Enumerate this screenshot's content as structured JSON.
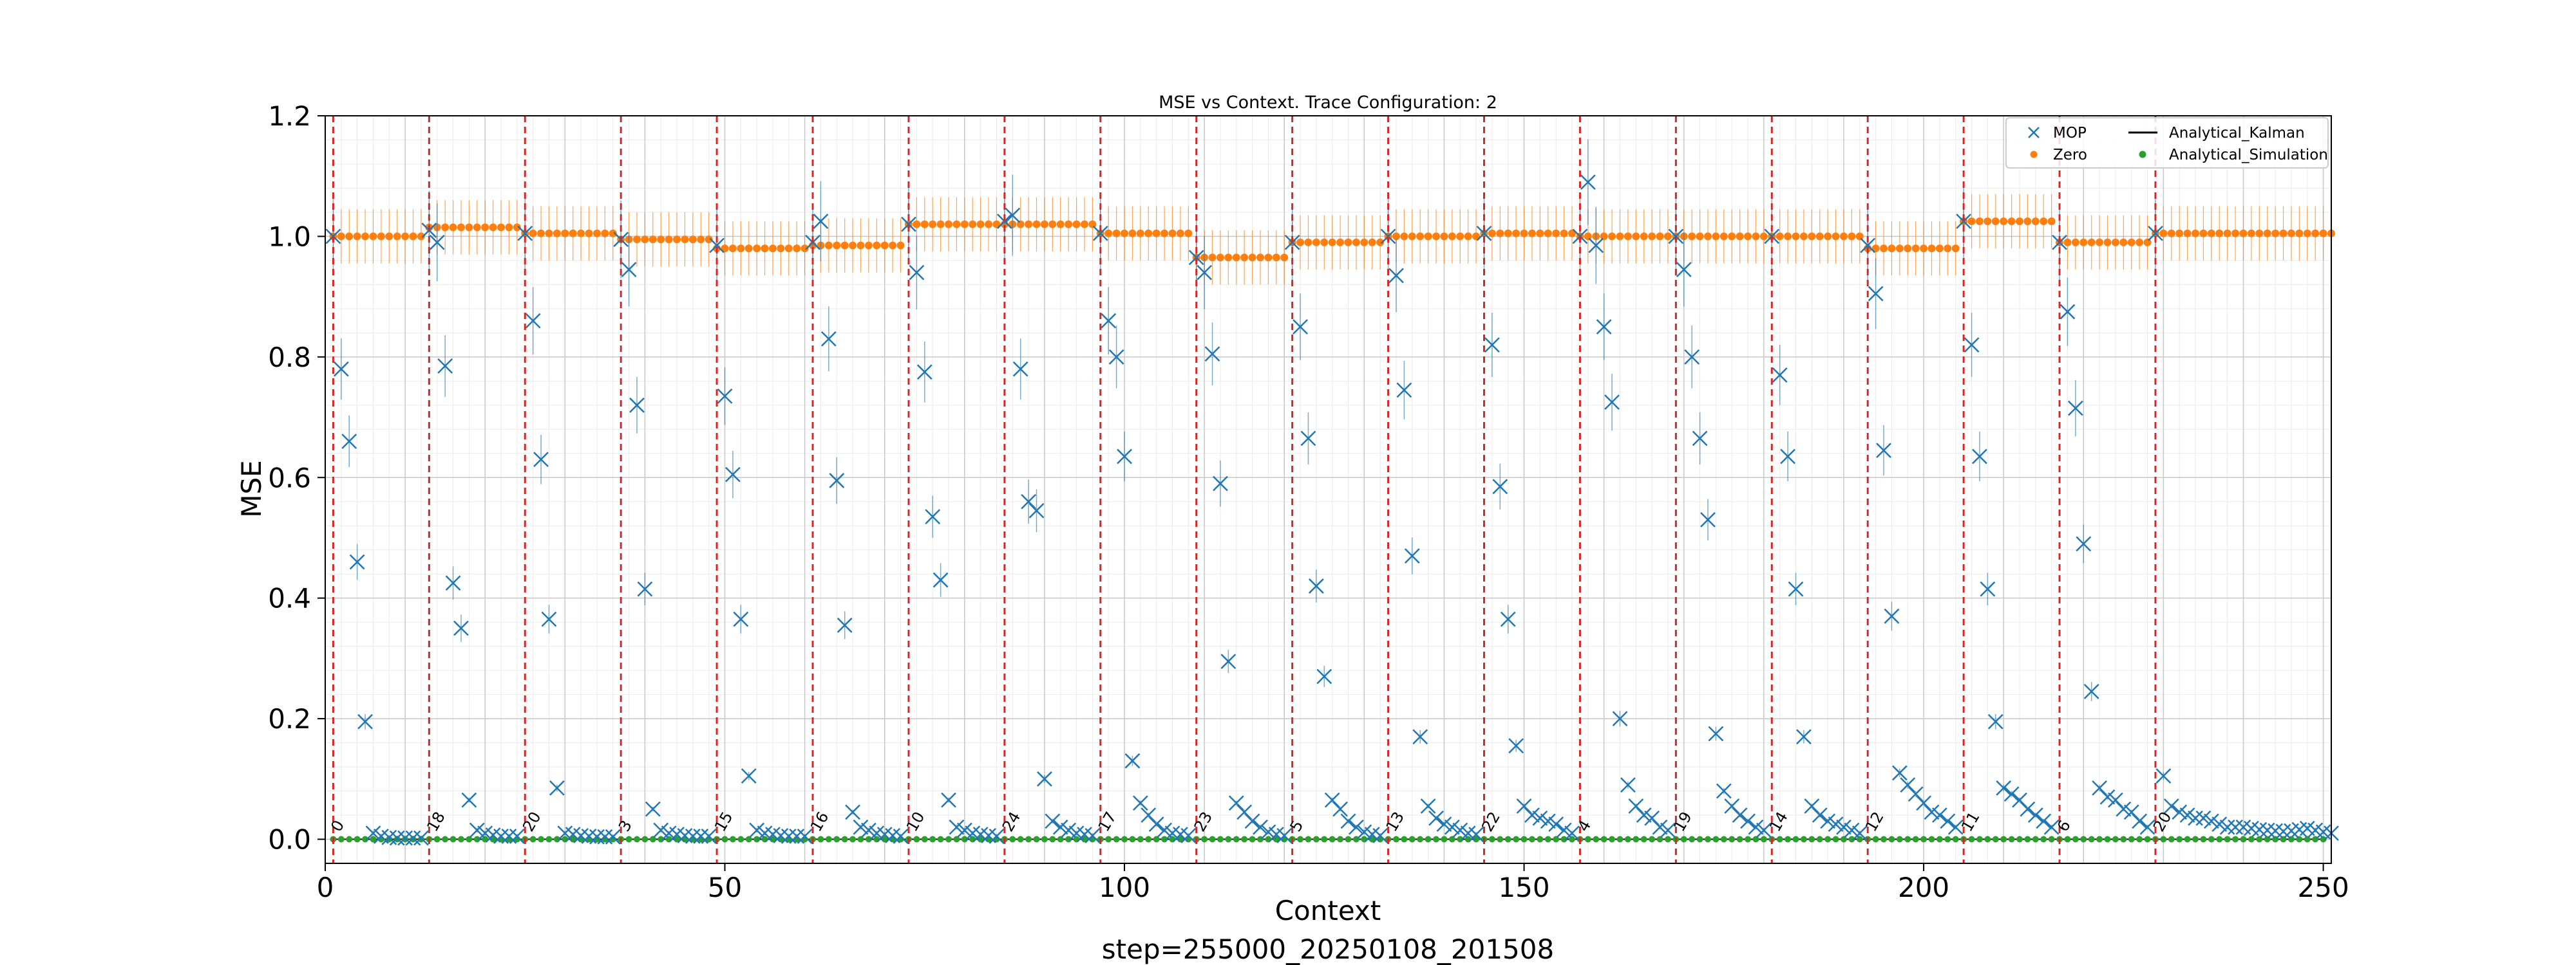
{
  "chart_data": {
    "type": "scatter",
    "title": "MSE vs Context. Trace Configuration: 2",
    "xlabel": "Context",
    "ylabel": "MSE",
    "footer": "step=255000_20250108_201508",
    "xlim": [
      0,
      251
    ],
    "ylim": [
      -0.04,
      1.2
    ],
    "x_ticks": [
      0,
      50,
      100,
      150,
      200,
      250
    ],
    "y_ticks": [
      0.0,
      0.2,
      0.4,
      0.6,
      0.8,
      1.0,
      1.2
    ],
    "grid": true,
    "legend_position": "top-right",
    "legend": [
      "MOP",
      "Zero",
      "Analytical_Kalman",
      "Analytical_Simulation"
    ],
    "colors": {
      "MOP": "#1f77b4",
      "Zero": "#ff7f0e",
      "Analytical_Kalman": "#000000",
      "Analytical_Simulation": "#2ca02c",
      "boundary": "#d62728"
    },
    "segment_starts": [
      1,
      13,
      25,
      37,
      49,
      61,
      73,
      85,
      97,
      109,
      121,
      133,
      145,
      157,
      169,
      181,
      193,
      205,
      217,
      229
    ],
    "segment_labels": [
      "0",
      "18",
      "20",
      "3",
      "15",
      "16",
      "10",
      "24",
      "17",
      "23",
      "5",
      "13",
      "22",
      "4",
      "19",
      "14",
      "12",
      "11",
      "6",
      "20"
    ],
    "zero_levels": [
      1.0,
      1.015,
      1.005,
      0.995,
      0.98,
      0.985,
      1.02,
      1.02,
      1.005,
      0.965,
      0.99,
      1.0,
      1.005,
      1.0,
      1.0,
      1.0,
      0.98,
      1.025,
      0.99,
      1.005
    ],
    "zero_errors": [
      0.045,
      0.045,
      0.045,
      0.045,
      0.045,
      0.045,
      0.045,
      0.045,
      0.045,
      0.045,
      0.045,
      0.045,
      0.045,
      0.045,
      0.045,
      0.045,
      0.045,
      0.045,
      0.045,
      0.045
    ],
    "mop_series": [
      [
        1.0,
        0.78,
        0.66,
        0.46,
        0.195,
        0.01,
        0.005,
        0.003,
        0.002,
        0.002,
        0.002,
        0.002
      ],
      [
        1.01,
        0.99,
        0.785,
        0.425,
        0.35,
        0.065,
        0.015,
        0.01,
        0.007,
        0.005,
        0.005,
        0.005
      ],
      [
        1.005,
        0.86,
        0.63,
        0.365,
        0.085,
        0.01,
        0.008,
        0.006,
        0.005,
        0.004,
        0.004,
        0.004
      ],
      [
        0.995,
        0.945,
        0.72,
        0.415,
        0.05,
        0.015,
        0.01,
        0.008,
        0.006,
        0.005,
        0.005,
        0.005
      ],
      [
        0.985,
        0.735,
        0.605,
        0.365,
        0.105,
        0.015,
        0.01,
        0.008,
        0.006,
        0.005,
        0.005,
        0.005
      ],
      [
        0.99,
        1.025,
        0.83,
        0.595,
        0.355,
        0.045,
        0.02,
        0.015,
        0.01,
        0.008,
        0.006,
        0.005
      ],
      [
        1.02,
        0.94,
        0.775,
        0.535,
        0.43,
        0.065,
        0.02,
        0.015,
        0.01,
        0.008,
        0.006,
        0.005
      ],
      [
        1.025,
        1.035,
        0.78,
        0.56,
        0.545,
        0.1,
        0.03,
        0.02,
        0.015,
        0.01,
        0.008,
        0.006
      ],
      [
        1.005,
        0.86,
        0.8,
        0.635,
        0.13,
        0.06,
        0.04,
        0.025,
        0.015,
        0.01,
        0.008,
        0.006
      ],
      [
        0.965,
        0.94,
        0.805,
        0.59,
        0.295,
        0.06,
        0.045,
        0.03,
        0.02,
        0.012,
        0.008,
        0.006
      ],
      [
        0.99,
        0.85,
        0.665,
        0.42,
        0.27,
        0.065,
        0.05,
        0.03,
        0.02,
        0.012,
        0.008,
        0.006
      ],
      [
        1.0,
        0.935,
        0.745,
        0.47,
        0.17,
        0.055,
        0.035,
        0.025,
        0.02,
        0.015,
        0.01,
        0.008
      ],
      [
        1.005,
        0.82,
        0.585,
        0.365,
        0.155,
        0.055,
        0.04,
        0.035,
        0.03,
        0.025,
        0.015,
        0.01
      ],
      [
        1.0,
        1.09,
        0.985,
        0.85,
        0.725,
        0.2,
        0.09,
        0.055,
        0.04,
        0.035,
        0.02,
        0.015
      ],
      [
        1.0,
        0.945,
        0.8,
        0.665,
        0.53,
        0.175,
        0.08,
        0.055,
        0.04,
        0.03,
        0.02,
        0.015
      ],
      [
        1.0,
        0.77,
        0.635,
        0.415,
        0.17,
        0.055,
        0.04,
        0.03,
        0.025,
        0.02,
        0.015,
        0.01
      ],
      [
        0.985,
        0.905,
        0.645,
        0.37,
        0.11,
        0.09,
        0.075,
        0.06,
        0.045,
        0.04,
        0.03,
        0.02
      ],
      [
        1.025,
        0.82,
        0.635,
        0.415,
        0.195,
        0.085,
        0.075,
        0.065,
        0.05,
        0.04,
        0.03,
        0.02
      ],
      [
        0.99,
        0.875,
        0.715,
        0.49,
        0.245,
        0.085,
        0.07,
        0.065,
        0.05,
        0.045,
        0.03,
        0.02
      ],
      [
        1.005,
        0.105,
        0.055,
        0.045,
        0.04,
        0.035,
        0.035,
        0.03,
        0.025,
        0.02,
        0.02,
        0.02,
        0.018,
        0.016,
        0.015,
        0.014,
        0.013,
        0.014,
        0.016,
        0.018,
        0.015,
        0.012,
        0.01
      ]
    ],
    "analytical_kalman_value": 0.0,
    "analytical_simulation_value": 0.0
  }
}
